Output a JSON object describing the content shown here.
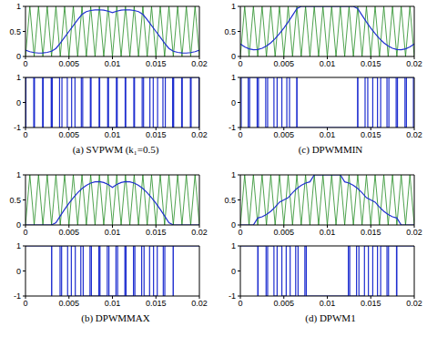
{
  "chart_data": [
    {
      "type": "line",
      "x": [
        0,
        0.0005,
        0.001,
        0.0015,
        0.002,
        0.0025,
        0.003,
        0.0035,
        0.004,
        0.0045,
        0.005,
        0.0055,
        0.006,
        0.0065,
        0.007,
        0.0075,
        0.008,
        0.0085,
        0.009,
        0.0095,
        0.01,
        0.0105,
        0.011,
        0.0115,
        0.012,
        0.0125,
        0.013,
        0.0135,
        0.014,
        0.0145,
        0.015,
        0.0155,
        0.016,
        0.0165,
        0.017,
        0.0175,
        0.018,
        0.0185,
        0.019,
        0.0195,
        0.02
      ],
      "series": [
        {
          "color": "#228b22",
          "line_style": "solid",
          "values": [
            0,
            1,
            0,
            1,
            0,
            1,
            0,
            1,
            0,
            1,
            0,
            1,
            0,
            1,
            0,
            1,
            0,
            1,
            0,
            1,
            0,
            1,
            0,
            1,
            0,
            1,
            0,
            1,
            0,
            1,
            0,
            1,
            0,
            1,
            0,
            1,
            0,
            1,
            0,
            1,
            0
          ]
        },
        {
          "color": "#1f2fd0",
          "line_style": "solid",
          "values": [
            0.125,
            0.096,
            0.077,
            0.068,
            0.069,
            0.082,
            0.104,
            0.16,
            0.268,
            0.383,
            0.5,
            0.617,
            0.732,
            0.84,
            0.896,
            0.918,
            0.931,
            0.932,
            0.924,
            0.904,
            0.875,
            0.904,
            0.924,
            0.932,
            0.931,
            0.918,
            0.896,
            0.84,
            0.732,
            0.617,
            0.5,
            0.383,
            0.268,
            0.16,
            0.104,
            0.082,
            0.069,
            0.068,
            0.077,
            0.096,
            0.125
          ]
        }
      ],
      "xlim": [
        0,
        0.02
      ],
      "ylim": [
        0,
        1
      ],
      "xticks": [
        0,
        0.005,
        0.01,
        0.015,
        0.02
      ],
      "yticks": [
        0,
        0.5,
        1
      ]
    },
    {
      "type": "line",
      "title": "(a) SVPWM (k₁=0.5)",
      "x": [
        0,
        4.8e-05,
        0.000952,
        0.001034,
        0.001966,
        0.002041,
        0.002959,
        0.00308,
        0.00392,
        0.004192,
        0.004808,
        0.005308,
        0.005692,
        0.00642,
        0.00658,
        0.007459,
        0.007541,
        0.008466,
        0.008534,
        0.009452,
        0.009548,
        0.010452,
        0.010548,
        0.011466,
        0.011534,
        0.012459,
        0.012541,
        0.01342,
        0.01358,
        0.014308,
        0.014692,
        0.015192,
        0.015808,
        0.01608,
        0.01692,
        0.017041,
        0.017959,
        0.018034,
        0.018966,
        0.019048,
        0.019952,
        0.02
      ],
      "series": [
        {
          "color": "#1f2fd0",
          "line_style": "step",
          "values": [
            -1,
            1,
            -1,
            1,
            -1,
            1,
            -1,
            1,
            -1,
            1,
            -1,
            1,
            -1,
            1,
            -1,
            1,
            -1,
            1,
            -1,
            1,
            -1,
            1,
            -1,
            1,
            -1,
            1,
            -1,
            1,
            -1,
            1,
            -1,
            1,
            -1,
            1,
            -1,
            1,
            -1,
            1,
            -1,
            1,
            -1,
            -1
          ]
        }
      ],
      "xlim": [
        0,
        0.02
      ],
      "ylim": [
        -1,
        1
      ],
      "xticks": [
        0,
        0.005,
        0.01,
        0.015,
        0.02
      ],
      "yticks": [
        -1,
        0,
        1
      ]
    },
    {
      "type": "line",
      "x": [
        0,
        0.0005,
        0.001,
        0.0015,
        0.002,
        0.0025,
        0.003,
        0.0035,
        0.004,
        0.0045,
        0.005,
        0.0055,
        0.006,
        0.0065,
        0.007,
        0.0075,
        0.008,
        0.0085,
        0.009,
        0.0095,
        0.01,
        0.0105,
        0.011,
        0.0115,
        0.012,
        0.0125,
        0.013,
        0.0135,
        0.014,
        0.0145,
        0.015,
        0.0155,
        0.016,
        0.0165,
        0.017,
        0.0175,
        0.018,
        0.0185,
        0.019,
        0.0195,
        0.02
      ],
      "series": [
        {
          "color": "#228b22",
          "line_style": "solid",
          "values": [
            0,
            1,
            0,
            1,
            0,
            1,
            0,
            1,
            0,
            1,
            0,
            1,
            0,
            1,
            0,
            1,
            0,
            1,
            0,
            1,
            0,
            1,
            0,
            1,
            0,
            1,
            0,
            1,
            0,
            1,
            0,
            1,
            0,
            1,
            0,
            1,
            0,
            1,
            0,
            1,
            0
          ]
        },
        {
          "color": "#1f2fd0",
          "line_style": "solid",
          "values": [
            0.25,
            0.191,
            0.153,
            0.135,
            0.139,
            0.163,
            0.209,
            0.274,
            0.356,
            0.455,
            0.567,
            0.69,
            0.82,
            0.955,
            1,
            1,
            1,
            1,
            1,
            1,
            1,
            1,
            1,
            1,
            1,
            1,
            1,
            0.955,
            0.82,
            0.69,
            0.567,
            0.455,
            0.356,
            0.274,
            0.209,
            0.163,
            0.139,
            0.135,
            0.153,
            0.191,
            0.25
          ]
        }
      ],
      "xlim": [
        0,
        0.02
      ],
      "ylim": [
        0,
        1
      ],
      "xticks": [
        0,
        0.005,
        0.01,
        0.015,
        0.02
      ],
      "yticks": [
        0,
        0.5,
        1
      ]
    },
    {
      "type": "line",
      "title": "(c) DPWMMIN",
      "x": [
        0,
        9.6e-05,
        0.000904,
        0.001068,
        0.001933,
        0.002082,
        0.002918,
        0.003137,
        0.003863,
        0.004228,
        0.004773,
        0.005345,
        0.005655,
        0.006478,
        0.006523,
        0.013478,
        0.013523,
        0.014345,
        0.014655,
        0.015228,
        0.015773,
        0.016137,
        0.016863,
        0.017082,
        0.017918,
        0.018068,
        0.018933,
        0.019096,
        0.019904,
        0.02
      ],
      "series": [
        {
          "color": "#1f2fd0",
          "line_style": "step",
          "values": [
            -1,
            1,
            -1,
            1,
            -1,
            1,
            -1,
            1,
            -1,
            1,
            -1,
            1,
            -1,
            1,
            -1,
            1,
            -1,
            1,
            -1,
            1,
            -1,
            1,
            -1,
            1,
            -1,
            1,
            -1,
            1,
            -1,
            -1
          ]
        }
      ],
      "xlim": [
        0,
        0.02
      ],
      "ylim": [
        -1,
        1
      ],
      "xticks": [
        0,
        0.005,
        0.01,
        0.015,
        0.02
      ],
      "yticks": [
        -1,
        0,
        1
      ]
    },
    {
      "type": "line",
      "x": [
        0,
        0.0005,
        0.001,
        0.0015,
        0.002,
        0.0025,
        0.003,
        0.0035,
        0.004,
        0.0045,
        0.005,
        0.0055,
        0.006,
        0.0065,
        0.007,
        0.0075,
        0.008,
        0.0085,
        0.009,
        0.0095,
        0.01,
        0.0105,
        0.011,
        0.0115,
        0.012,
        0.0125,
        0.013,
        0.0135,
        0.014,
        0.0145,
        0.015,
        0.0155,
        0.016,
        0.0165,
        0.017,
        0.0175,
        0.018,
        0.0185,
        0.019,
        0.0195,
        0.02
      ],
      "series": [
        {
          "color": "#228b22",
          "line_style": "solid",
          "values": [
            0,
            1,
            0,
            1,
            0,
            1,
            0,
            1,
            0,
            1,
            0,
            1,
            0,
            1,
            0,
            1,
            0,
            1,
            0,
            1,
            0,
            1,
            0,
            1,
            0,
            1,
            0,
            1,
            0,
            1,
            0,
            1,
            0,
            1,
            0,
            1,
            0,
            1,
            0,
            1,
            0
          ]
        },
        {
          "color": "#1f2fd0",
          "line_style": "solid",
          "values": [
            0,
            0,
            0,
            0,
            0,
            0,
            0,
            0.045,
            0.18,
            0.31,
            0.433,
            0.545,
            0.644,
            0.726,
            0.791,
            0.837,
            0.861,
            0.865,
            0.847,
            0.809,
            0.75,
            0.809,
            0.847,
            0.865,
            0.861,
            0.837,
            0.791,
            0.726,
            0.644,
            0.545,
            0.433,
            0.31,
            0.18,
            0.045,
            0,
            0,
            0,
            0,
            0,
            0,
            0
          ]
        }
      ],
      "xlim": [
        0,
        0.02
      ],
      "ylim": [
        0,
        1
      ],
      "xticks": [
        0,
        0.005,
        0.01,
        0.015,
        0.02
      ],
      "yticks": [
        0,
        0.5,
        1
      ]
    },
    {
      "type": "line",
      "title": "(b) DPWMMAX",
      "x": [
        0,
        0.003,
        0.003023,
        0.003978,
        0.004155,
        0.004845,
        0.005273,
        0.005727,
        0.006363,
        0.006637,
        0.007419,
        0.007581,
        0.008433,
        0.008567,
        0.009405,
        0.009595,
        0.010405,
        0.010595,
        0.011433,
        0.011567,
        0.012419,
        0.012581,
        0.013363,
        0.013637,
        0.014273,
        0.014727,
        0.015155,
        0.015845,
        0.016023,
        0.016978,
        0.017,
        0.02
      ],
      "series": [
        {
          "color": "#1f2fd0",
          "line_style": "step",
          "values": [
            1,
            -1,
            1,
            -1,
            1,
            -1,
            1,
            -1,
            1,
            -1,
            1,
            -1,
            1,
            -1,
            1,
            -1,
            1,
            -1,
            1,
            -1,
            1,
            -1,
            1,
            -1,
            1,
            -1,
            1,
            -1,
            1,
            -1,
            1,
            1
          ]
        }
      ],
      "xlim": [
        0,
        0.02
      ],
      "ylim": [
        -1,
        1
      ],
      "xticks": [
        0,
        0.005,
        0.01,
        0.015,
        0.02
      ],
      "yticks": [
        -1,
        0,
        1
      ]
    },
    {
      "type": "line",
      "x": [
        0,
        0.0005,
        0.001,
        0.0015,
        0.002,
        0.0025,
        0.003,
        0.0035,
        0.004,
        0.0045,
        0.005,
        0.0055,
        0.006,
        0.0065,
        0.007,
        0.0075,
        0.008,
        0.0085,
        0.009,
        0.0095,
        0.01,
        0.0105,
        0.011,
        0.0115,
        0.012,
        0.0125,
        0.013,
        0.0135,
        0.014,
        0.0145,
        0.015,
        0.0155,
        0.016,
        0.0165,
        0.017,
        0.0175,
        0.018,
        0.0185,
        0.019,
        0.0195,
        0.02
      ],
      "series": [
        {
          "color": "#228b22",
          "line_style": "solid",
          "values": [
            0,
            1,
            0,
            1,
            0,
            1,
            0,
            1,
            0,
            1,
            0,
            1,
            0,
            1,
            0,
            1,
            0,
            1,
            0,
            1,
            0,
            1,
            0,
            1,
            0,
            1,
            0,
            1,
            0,
            1,
            0,
            1,
            0,
            1,
            0,
            1,
            0,
            1,
            0,
            1,
            0
          ]
        },
        {
          "color": "#1f2fd0",
          "line_style": "solid",
          "values": [
            0,
            0,
            0,
            0,
            0.139,
            0.164,
            0.209,
            0.274,
            0.356,
            0.455,
            0.5,
            0.545,
            0.644,
            0.726,
            0.791,
            0.837,
            0.861,
            1,
            1,
            1,
            1,
            1,
            1,
            1,
            0.861,
            0.837,
            0.791,
            0.726,
            0.644,
            0.545,
            0.5,
            0.455,
            0.356,
            0.274,
            0.209,
            0.164,
            0.139,
            0,
            0,
            0,
            0
          ]
        }
      ],
      "xlim": [
        0,
        0.02
      ],
      "ylim": [
        0,
        1
      ],
      "xticks": [
        0,
        0.005,
        0.01,
        0.015,
        0.02
      ],
      "yticks": [
        0,
        0.5,
        1
      ]
    },
    {
      "type": "line",
      "title": "(d) DPWM1",
      "x": [
        0,
        0.002,
        0.002041,
        0.002959,
        0.003137,
        0.003863,
        0.004228,
        0.004773,
        0.005273,
        0.005727,
        0.006363,
        0.006637,
        0.007419,
        0.007581,
        0.012419,
        0.012581,
        0.013363,
        0.013637,
        0.014273,
        0.014727,
        0.015228,
        0.015773,
        0.016137,
        0.016863,
        0.017041,
        0.017959,
        0.018,
        0.02
      ],
      "series": [
        {
          "color": "#1f2fd0",
          "line_style": "step",
          "values": [
            1,
            -1,
            1,
            -1,
            1,
            -1,
            1,
            -1,
            1,
            -1,
            1,
            -1,
            1,
            -1,
            1,
            -1,
            1,
            -1,
            1,
            -1,
            1,
            -1,
            1,
            -1,
            1,
            -1,
            1,
            1
          ]
        }
      ],
      "xlim": [
        0,
        0.02
      ],
      "ylim": [
        -1,
        1
      ],
      "xticks": [
        0,
        0.005,
        0.01,
        0.015,
        0.02
      ],
      "yticks": [
        -1,
        0,
        1
      ]
    }
  ]
}
